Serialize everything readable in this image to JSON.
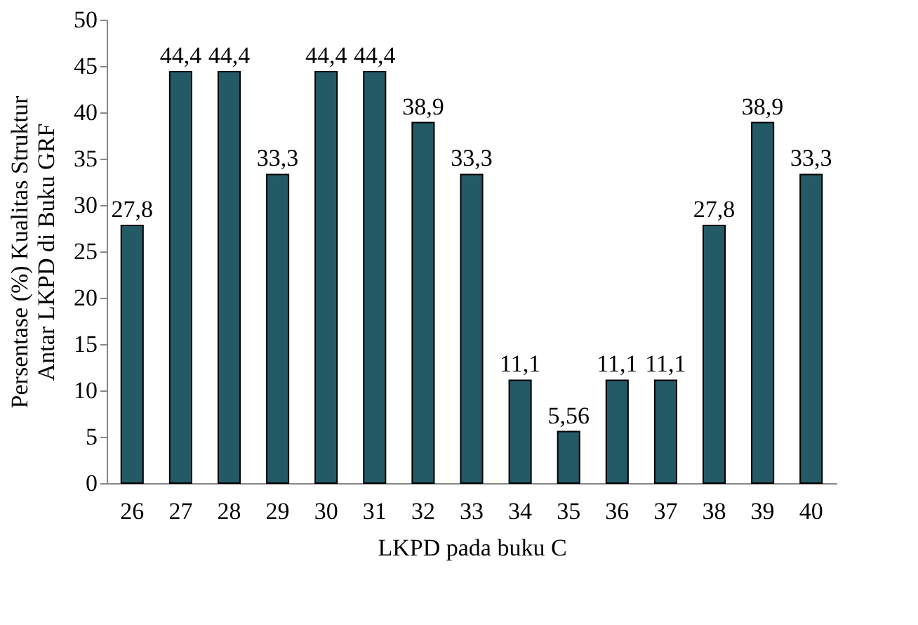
{
  "chart_data": {
    "type": "bar",
    "xlabel": "LKPD pada buku C",
    "ylabel": "Persentase (%) Kualitas Struktur\nAntar LKPD di Buku GRF",
    "categories": [
      "26",
      "27",
      "28",
      "29",
      "30",
      "31",
      "32",
      "33",
      "34",
      "35",
      "36",
      "37",
      "38",
      "39",
      "40"
    ],
    "values": [
      27.8,
      44.4,
      44.4,
      33.3,
      44.4,
      44.4,
      38.9,
      33.3,
      11.1,
      5.56,
      11.1,
      11.1,
      27.8,
      38.9,
      33.3
    ],
    "value_labels": [
      "27,8",
      "44,4",
      "44,4",
      "33,3",
      "44,4",
      "44,4",
      "38,9",
      "33,3",
      "11,1",
      "5,56",
      "11,1",
      "11,1",
      "27,8",
      "38,9",
      "33,3"
    ],
    "color": "#245a66",
    "ylim": [
      0,
      50
    ],
    "yticks": [
      0,
      5,
      10,
      15,
      20,
      25,
      30,
      35,
      40,
      45,
      50
    ],
    "grid": false
  }
}
